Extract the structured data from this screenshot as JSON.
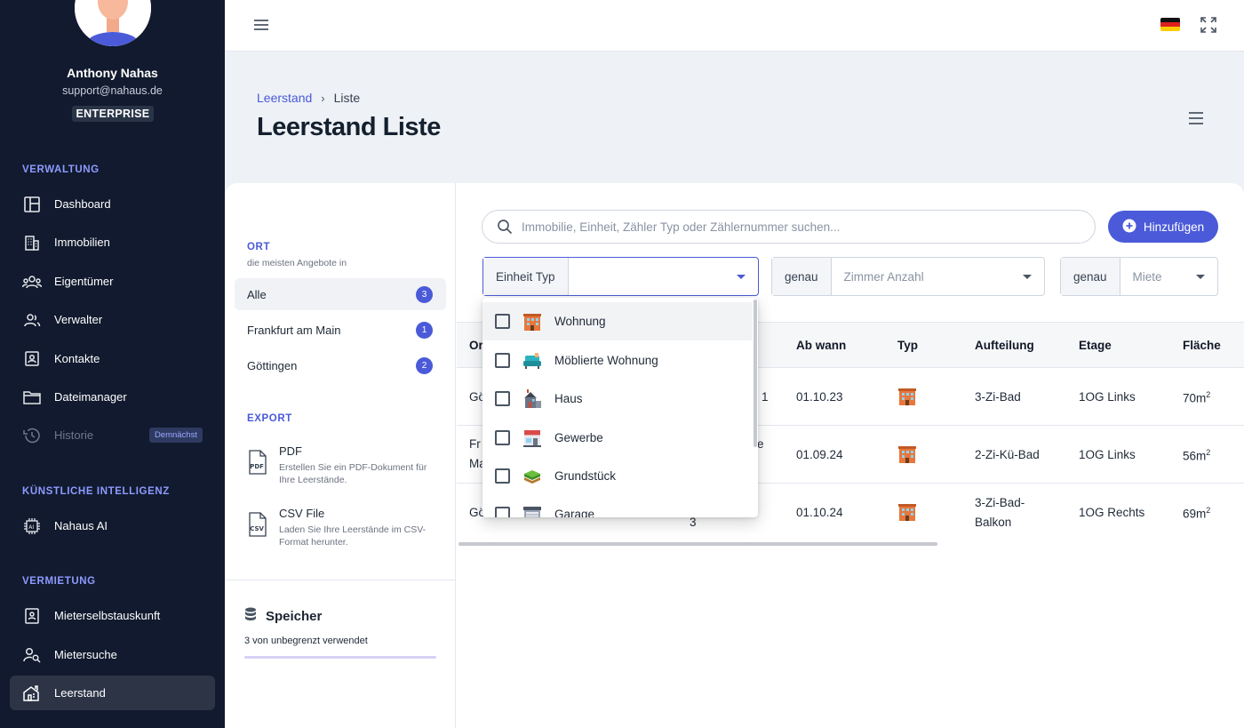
{
  "sidebar": {
    "profile": {
      "name": "Anthony Nahas",
      "email": "support@nahaus.de",
      "plan": "ENTERPRISE"
    },
    "sections": {
      "verwaltung": "VERWALTUNG",
      "ki": "KÜNSTLICHE INTELLIGENZ",
      "vermietung": "VERMIETUNG"
    },
    "items": {
      "dashboard": "Dashboard",
      "immobilien": "Immobilien",
      "eigentuemer": "Eigentümer",
      "verwalter": "Verwalter",
      "kontakte": "Kontakte",
      "dateimanager": "Dateimanager",
      "historie": "Historie",
      "historie_badge": "Demnächst",
      "nahaus_ai": "Nahaus AI",
      "mieterselbstauskunft": "Mieterselbstauskunft",
      "mietersuche": "Mietersuche",
      "leerstand": "Leerstand"
    }
  },
  "breadcrumb": {
    "parent": "Leerstand",
    "separator": "›",
    "current": "Liste"
  },
  "page": {
    "title": "Leerstand Liste"
  },
  "left_panel": {
    "ort_title": "ORT",
    "ort_subtitle": "die meisten Angebote in",
    "orte": [
      {
        "label": "Alle",
        "count": "3"
      },
      {
        "label": "Frankfurt am Main",
        "count": "1"
      },
      {
        "label": "Göttingen",
        "count": "2"
      }
    ],
    "export_title": "EXPORT",
    "exports": [
      {
        "title": "PDF",
        "desc": "Erstellen Sie ein PDF-Dokument für Ihre Leerstände.",
        "icon": "PDF"
      },
      {
        "title": "CSV File",
        "desc": "Laden Sie Ihre Leerstände im CSV-Format herunter.",
        "icon": "CSV"
      }
    ],
    "storage": {
      "title": "Speicher",
      "text": "3 von unbegrenzt verwendet"
    }
  },
  "search": {
    "placeholder": "Immobilie, Einheit, Zähler Typ oder Zählernummer suchen..."
  },
  "add_button": "Hinzufügen",
  "filters": {
    "einheit_typ": {
      "label": "Einheit Typ",
      "value": ""
    },
    "zimmer": {
      "label": "genau",
      "placeholder": "Zimmer Anzahl"
    },
    "miete": {
      "label": "genau",
      "placeholder": "Miete"
    }
  },
  "table": {
    "headers": {
      "ort": "Or",
      "ab_wann": "Ab wann",
      "typ": "Typ",
      "aufteilung": "Aufteilung",
      "etage": "Etage",
      "flaeche": "Fläche"
    },
    "rows": [
      {
        "ort": "Gö",
        "partial": "1",
        "ab_wann": "01.10.23",
        "aufteilung": "3-Zi-Bad",
        "etage": "1OG Links",
        "flaeche": "70m",
        "sup": "2"
      },
      {
        "ort": "Fr",
        "ort2": "Ma",
        "partial": "e",
        "ab_wann": "01.09.24",
        "aufteilung": "2-Zi-Kü-Bad",
        "etage": "1OG Links",
        "flaeche": "56m",
        "sup": "2"
      },
      {
        "ort": "Gö",
        "partial": "3",
        "ab_wann": "01.10.24",
        "aufteilung": "3-Zi-Bad-",
        "aufteilung2": "Balkon",
        "etage": "1OG Rechts",
        "flaeche": "69m",
        "sup": "2"
      }
    ]
  },
  "dropdown": {
    "options": [
      "Wohnung",
      "Möblierte Wohnung",
      "Haus",
      "Gewerbe",
      "Grundstück",
      "Garage"
    ]
  },
  "colors": {
    "sidebar_bg": "#111a2e",
    "accent": "#4a5ad8",
    "section_title": "#8e9bff"
  }
}
